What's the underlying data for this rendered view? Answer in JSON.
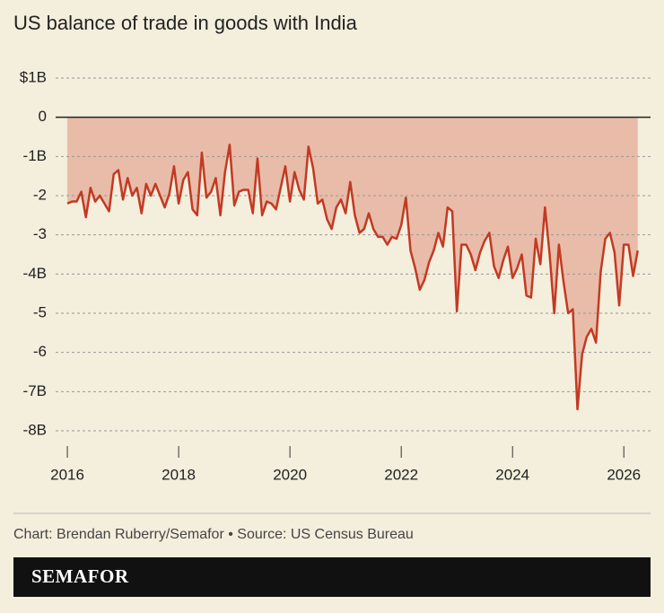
{
  "chart_data": {
    "type": "area",
    "title": "US balance of trade in goods with India",
    "source": "Chart: Brendan Ruberry/Semafor • Source: US Census Bureau",
    "brand": "SEMAFOR",
    "x": [
      "2016-01",
      "2016-02",
      "2016-03",
      "2016-04",
      "2016-05",
      "2016-06",
      "2016-07",
      "2016-08",
      "2016-09",
      "2016-10",
      "2016-11",
      "2016-12",
      "2017-01",
      "2017-02",
      "2017-03",
      "2017-04",
      "2017-05",
      "2017-06",
      "2017-07",
      "2017-08",
      "2017-09",
      "2017-10",
      "2017-11",
      "2017-12",
      "2018-01",
      "2018-02",
      "2018-03",
      "2018-04",
      "2018-05",
      "2018-06",
      "2018-07",
      "2018-08",
      "2018-09",
      "2018-10",
      "2018-11",
      "2018-12",
      "2019-01",
      "2019-02",
      "2019-03",
      "2019-04",
      "2019-05",
      "2019-06",
      "2019-07",
      "2019-08",
      "2019-09",
      "2019-10",
      "2019-11",
      "2019-12",
      "2020-01",
      "2020-02",
      "2020-03",
      "2020-04",
      "2020-05",
      "2020-06",
      "2020-07",
      "2020-08",
      "2020-09",
      "2020-10",
      "2020-11",
      "2020-12",
      "2021-01",
      "2021-02",
      "2021-03",
      "2021-04",
      "2021-05",
      "2021-06",
      "2021-07",
      "2021-08",
      "2021-09",
      "2021-10",
      "2021-11",
      "2021-12",
      "2022-01",
      "2022-02",
      "2022-03",
      "2022-04",
      "2022-05",
      "2022-06",
      "2022-07",
      "2022-08",
      "2022-09",
      "2022-10",
      "2022-11",
      "2022-12",
      "2023-01",
      "2023-02",
      "2023-03",
      "2023-04",
      "2023-05",
      "2023-06",
      "2023-07",
      "2023-08",
      "2023-09",
      "2023-10",
      "2023-11",
      "2023-12",
      "2024-01",
      "2024-02",
      "2024-03",
      "2024-04",
      "2024-05",
      "2024-06",
      "2024-07",
      "2024-08",
      "2024-09",
      "2024-10",
      "2024-11",
      "2024-12",
      "2025-01",
      "2025-02",
      "2025-03",
      "2025-04",
      "2025-05",
      "2025-06",
      "2025-07",
      "2025-08",
      "2025-09",
      "2025-10",
      "2025-11",
      "2025-12",
      "2026-01",
      "2026-02",
      "2026-03",
      "2026-04"
    ],
    "series": [
      {
        "color": "#c23a24",
        "fill": "#e8bca8",
        "values": [
          -2.2,
          -2.15,
          -2.15,
          -1.9,
          -2.55,
          -1.8,
          -2.15,
          -2.0,
          -2.2,
          -2.4,
          -1.45,
          -1.35,
          -2.1,
          -1.55,
          -2.0,
          -1.8,
          -2.45,
          -1.7,
          -2.0,
          -1.7,
          -2.0,
          -2.3,
          -1.95,
          -1.25,
          -2.2,
          -1.6,
          -1.4,
          -2.35,
          -2.5,
          -0.9,
          -2.05,
          -1.9,
          -1.55,
          -2.5,
          -1.4,
          -0.7,
          -2.25,
          -1.9,
          -1.85,
          -1.85,
          -2.45,
          -1.05,
          -2.5,
          -2.15,
          -2.2,
          -2.35,
          -1.8,
          -1.25,
          -2.15,
          -1.4,
          -1.85,
          -2.1,
          -0.75,
          -1.3,
          -2.2,
          -2.1,
          -2.6,
          -2.85,
          -2.3,
          -2.1,
          -2.45,
          -1.65,
          -2.5,
          -2.95,
          -2.85,
          -2.45,
          -2.85,
          -3.05,
          -3.05,
          -3.25,
          -3.05,
          -3.1,
          -2.75,
          -2.05,
          -3.4,
          -3.85,
          -4.4,
          -4.15,
          -3.7,
          -3.4,
          -2.95,
          -3.3,
          -2.3,
          -2.4,
          -4.95,
          -3.25,
          -3.25,
          -3.5,
          -3.9,
          -3.45,
          -3.15,
          -2.95,
          -3.8,
          -4.1,
          -3.65,
          -3.3,
          -4.1,
          -3.85,
          -3.5,
          -4.55,
          -4.6,
          -3.1,
          -3.75,
          -2.3,
          -3.5,
          -5.0,
          -3.25,
          -4.2,
          -5.0,
          -4.9,
          -7.45,
          -6.05,
          -5.6,
          -5.4,
          -5.75,
          -3.95,
          -3.1,
          -2.95,
          -3.45,
          -4.8,
          -3.25,
          -3.25,
          -4.05,
          -3.4
        ]
      }
    ],
    "xlim": [
      2015.08,
      2026.48
    ],
    "xticks": [
      2016,
      2018,
      2020,
      2022,
      2024,
      2026
    ],
    "ylim": [
      -8,
      1
    ],
    "yticks": [
      {
        "value": 1,
        "label": "$1B"
      },
      0,
      {
        "value": -1,
        "label": "-1B"
      },
      {
        "value": -2,
        "label": "-2"
      },
      {
        "value": -3,
        "label": "-3"
      },
      {
        "value": -4,
        "label": "-4B"
      },
      {
        "value": -5,
        "label": "-5"
      },
      {
        "value": -6,
        "label": "-6"
      },
      {
        "value": -7,
        "label": "-7B"
      },
      {
        "value": -8,
        "label": "-8B"
      }
    ],
    "grid": true
  }
}
